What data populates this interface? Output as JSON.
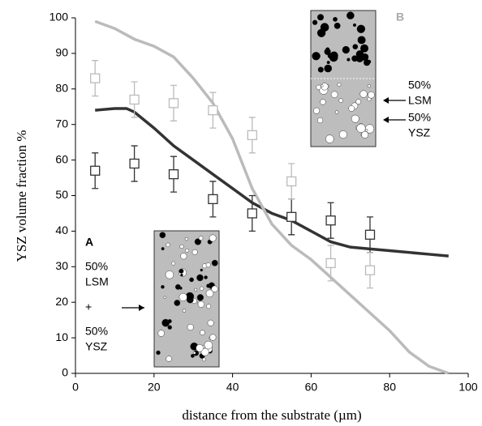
{
  "chart_data": {
    "type": "line",
    "x_label": "distance from the substrate (µm)",
    "y_label": "YSZ volume fraction %",
    "xlim": [
      0,
      100
    ],
    "xticks": [
      0,
      20,
      40,
      60,
      80,
      100
    ],
    "ylim": [
      0,
      100
    ],
    "yticks": [
      0,
      10,
      20,
      30,
      40,
      50,
      60,
      70,
      80,
      90,
      100
    ],
    "curves": [
      {
        "color": "#333333",
        "x": [
          5,
          10,
          13,
          15,
          20,
          25,
          30,
          35,
          40,
          45,
          50,
          55,
          60,
          65,
          70,
          75,
          80,
          90,
          95
        ],
        "values": [
          74,
          74.5,
          74.5,
          73.5,
          69,
          64,
          60,
          56,
          52,
          48,
          45,
          43,
          40,
          37,
          35.5,
          35,
          34.5,
          33.5,
          33
        ]
      },
      {
        "color": "#bbbbbb",
        "x": [
          5,
          10,
          15,
          20,
          25,
          30,
          35,
          40,
          45,
          50,
          55,
          60,
          65,
          70,
          75,
          80,
          85,
          90,
          95
        ],
        "values": [
          99,
          97,
          94,
          92,
          89,
          83,
          76,
          66,
          52,
          42,
          36,
          32,
          27,
          22,
          17,
          12,
          6,
          2,
          0
        ]
      }
    ],
    "points": [
      {
        "color": "#333333",
        "x": [
          5,
          15,
          25,
          35,
          45,
          55,
          65,
          75
        ],
        "values": [
          57,
          59,
          56,
          49,
          45,
          44,
          43,
          39
        ],
        "errors": [
          5,
          5,
          5,
          5,
          5,
          5,
          5,
          5
        ]
      },
      {
        "color": "#bbbbbb",
        "x": [
          5,
          15,
          25,
          35,
          45,
          55,
          65,
          75
        ],
        "values": [
          83,
          77,
          76,
          74,
          67,
          54,
          31,
          29
        ],
        "errors": [
          5,
          5,
          5,
          5,
          5,
          5,
          5,
          5
        ]
      }
    ],
    "inset_a": {
      "label": "A",
      "lines": [
        "50%",
        "LSM",
        "+",
        "50%",
        "YSZ"
      ]
    },
    "inset_b": {
      "label": "B",
      "lines": [
        "50%",
        "LSM",
        "50%",
        "YSZ"
      ]
    }
  }
}
